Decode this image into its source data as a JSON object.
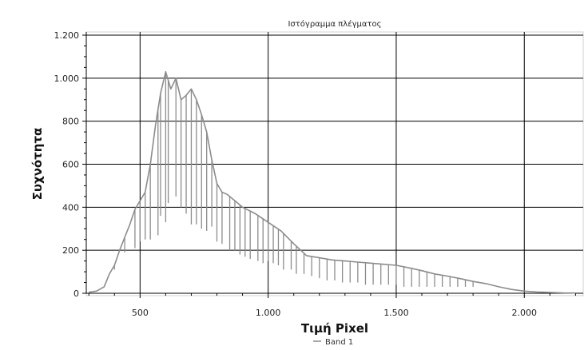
{
  "chart_data": {
    "type": "line",
    "title": "Ιστόγραμμα πλέγματος",
    "xlabel": "Τιμή Pixel",
    "ylabel": "Συχνότητα",
    "xlim": [
      290,
      2230
    ],
    "ylim": [
      0,
      1200
    ],
    "x_ticks": [
      500,
      1000,
      1500,
      2000
    ],
    "x_tick_labels": [
      "500",
      "1.000",
      "1.500",
      "2.000"
    ],
    "y_ticks": [
      0,
      200,
      400,
      600,
      800,
      1000,
      1200
    ],
    "y_tick_labels": [
      "0",
      "200",
      "400",
      "600",
      "800",
      "1.000",
      "1.200"
    ],
    "grid": true,
    "legend_position": "bottom",
    "series": [
      {
        "name": "Band 1",
        "color": "#8c8c8c",
        "x": [
          300,
          330,
          360,
          380,
          400,
          420,
          440,
          460,
          480,
          500,
          520,
          540,
          560,
          580,
          600,
          620,
          640,
          660,
          680,
          700,
          720,
          740,
          760,
          780,
          800,
          820,
          840,
          860,
          880,
          900,
          950,
          1000,
          1050,
          1100,
          1150,
          1200,
          1250,
          1300,
          1350,
          1400,
          1450,
          1500,
          1550,
          1600,
          1650,
          1700,
          1750,
          1800,
          1850,
          1900,
          1950,
          2000,
          2050,
          2100,
          2150,
          2200
        ],
        "y": [
          5,
          10,
          30,
          90,
          130,
          200,
          260,
          320,
          390,
          430,
          470,
          600,
          780,
          930,
          1030,
          950,
          1000,
          900,
          920,
          950,
          900,
          830,
          750,
          620,
          510,
          470,
          460,
          440,
          420,
          400,
          370,
          330,
          290,
          230,
          175,
          165,
          155,
          150,
          145,
          140,
          135,
          130,
          118,
          105,
          90,
          80,
          68,
          55,
          45,
          30,
          18,
          10,
          6,
          4,
          2,
          1
        ],
        "drops": [
          [
            400,
            110
          ],
          [
            440,
            190
          ],
          [
            480,
            210
          ],
          [
            500,
            240
          ],
          [
            520,
            250
          ],
          [
            540,
            250
          ],
          [
            570,
            270
          ],
          [
            580,
            360
          ],
          [
            600,
            330
          ],
          [
            610,
            420
          ],
          [
            640,
            450
          ],
          [
            660,
            400
          ],
          [
            680,
            370
          ],
          [
            700,
            320
          ],
          [
            720,
            320
          ],
          [
            740,
            300
          ],
          [
            760,
            290
          ],
          [
            780,
            310
          ],
          [
            800,
            240
          ],
          [
            820,
            230
          ],
          [
            850,
            200
          ],
          [
            870,
            200
          ],
          [
            890,
            180
          ],
          [
            910,
            170
          ],
          [
            930,
            160
          ],
          [
            960,
            150
          ],
          [
            980,
            140
          ],
          [
            1000,
            150
          ],
          [
            1020,
            140
          ],
          [
            1040,
            130
          ],
          [
            1060,
            110
          ],
          [
            1090,
            110
          ],
          [
            1110,
            90
          ],
          [
            1140,
            90
          ],
          [
            1170,
            80
          ],
          [
            1200,
            70
          ],
          [
            1230,
            60
          ],
          [
            1260,
            60
          ],
          [
            1290,
            50
          ],
          [
            1320,
            50
          ],
          [
            1350,
            50
          ],
          [
            1380,
            40
          ],
          [
            1410,
            40
          ],
          [
            1440,
            40
          ],
          [
            1470,
            40
          ],
          [
            1500,
            40
          ],
          [
            1530,
            30
          ],
          [
            1560,
            30
          ],
          [
            1590,
            30
          ],
          [
            1620,
            30
          ],
          [
            1650,
            30
          ],
          [
            1680,
            30
          ],
          [
            1710,
            30
          ],
          [
            1740,
            30
          ],
          [
            1770,
            30
          ],
          [
            1800,
            30
          ]
        ]
      }
    ]
  }
}
